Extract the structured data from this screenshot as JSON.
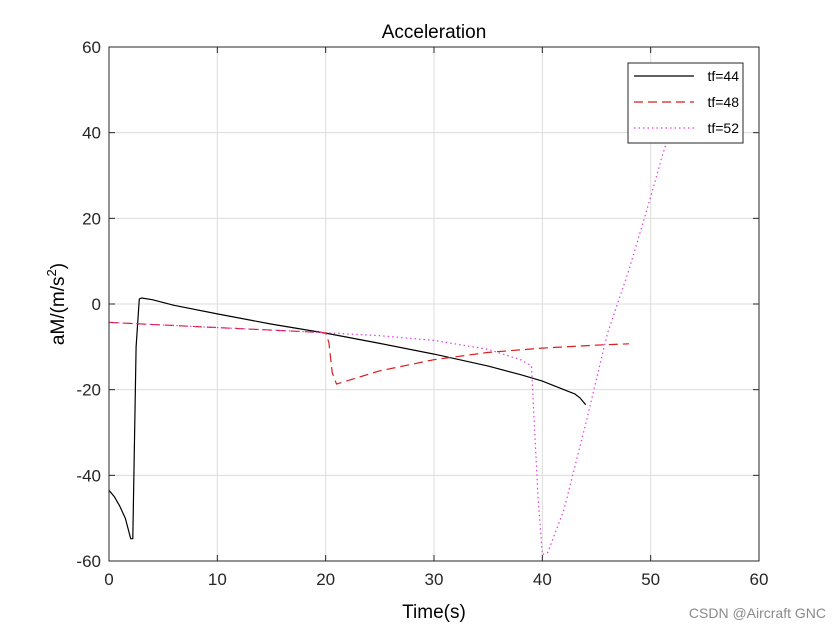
{
  "chart_data": {
    "type": "line",
    "title": "Acceleration",
    "xlabel": "Time(s)",
    "ylabel_main": "aM/(m/s",
    "ylabel_sup": "2",
    "ylabel_close": ")",
    "xlim": [
      0,
      60
    ],
    "ylim": [
      -60,
      60
    ],
    "xticks": [
      0,
      10,
      20,
      30,
      40,
      50,
      60
    ],
    "yticks": [
      -60,
      -40,
      -20,
      0,
      20,
      40,
      60
    ],
    "grid": true,
    "legend_position": "top-right",
    "series": [
      {
        "name": "tf=44",
        "color": "#000000",
        "dash": "solid",
        "points": [
          [
            0,
            -43.5
          ],
          [
            0.5,
            -45
          ],
          [
            1,
            -47.2
          ],
          [
            1.5,
            -50
          ],
          [
            2,
            -54.8
          ],
          [
            2.2,
            -54.8
          ],
          [
            2.5,
            -10
          ],
          [
            2.8,
            1.2
          ],
          [
            3,
            1.4
          ],
          [
            4,
            1
          ],
          [
            6,
            -0.3
          ],
          [
            10,
            -2.3
          ],
          [
            15,
            -4.7
          ],
          [
            20,
            -6.8
          ],
          [
            25,
            -9.2
          ],
          [
            30,
            -11.7
          ],
          [
            35,
            -14.5
          ],
          [
            38,
            -16.5
          ],
          [
            40,
            -18
          ],
          [
            42,
            -20
          ],
          [
            43,
            -21
          ],
          [
            43.5,
            -22
          ],
          [
            44,
            -23.5
          ]
        ]
      },
      {
        "name": "tf=48",
        "color": "#d42020",
        "dash": "dashed",
        "points": [
          [
            0,
            -4.3
          ],
          [
            5,
            -4.9
          ],
          [
            10,
            -5.5
          ],
          [
            15,
            -6.1
          ],
          [
            20,
            -6.7
          ],
          [
            20.3,
            -9
          ],
          [
            20.6,
            -16
          ],
          [
            21,
            -18.7
          ],
          [
            25,
            -15.6
          ],
          [
            30,
            -13
          ],
          [
            35,
            -11.3
          ],
          [
            40,
            -10.3
          ],
          [
            45,
            -9.6
          ],
          [
            48,
            -9.3
          ]
        ]
      },
      {
        "name": "tf=52",
        "color": "#e040e0",
        "dash": "dotted",
        "points": [
          [
            0,
            -4.3
          ],
          [
            5,
            -4.9
          ],
          [
            10,
            -5.5
          ],
          [
            15,
            -6.1
          ],
          [
            20,
            -6.7
          ],
          [
            25,
            -7.4
          ],
          [
            30,
            -8.5
          ],
          [
            35,
            -10.6
          ],
          [
            38,
            -13
          ],
          [
            39,
            -14.5
          ],
          [
            39.2,
            -25
          ],
          [
            39.6,
            -45
          ],
          [
            40,
            -58.5
          ],
          [
            40.5,
            -58
          ],
          [
            42,
            -48
          ],
          [
            44,
            -28
          ],
          [
            46,
            -7
          ],
          [
            48,
            8
          ],
          [
            50,
            25
          ],
          [
            51,
            34
          ],
          [
            52,
            42
          ]
        ]
      }
    ]
  },
  "watermark": "CSDN @Aircraft GNC"
}
